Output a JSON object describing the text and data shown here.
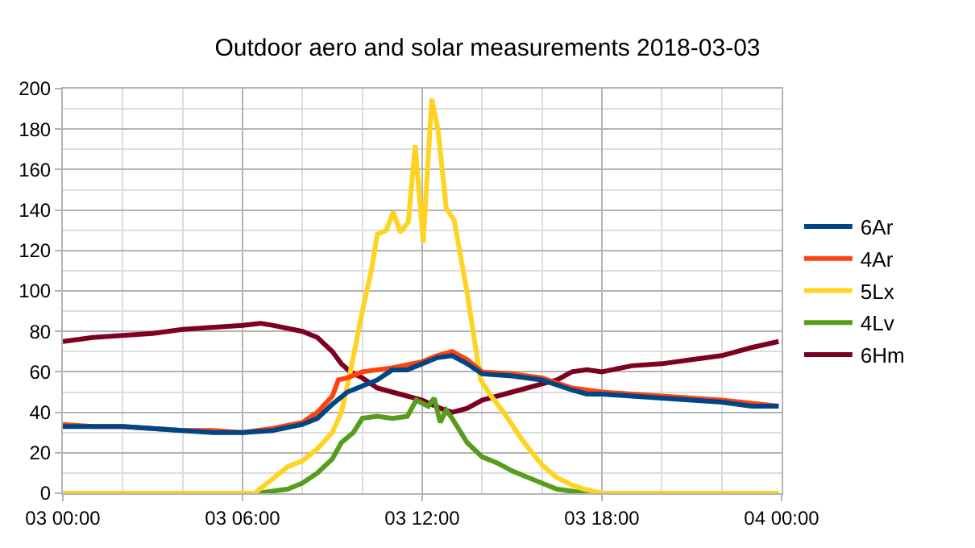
{
  "chart_data": {
    "type": "line",
    "title": "Outdoor aero and solar measurements 2018-03-03",
    "xlim": [
      "2018-03-03T00:00",
      "2018-03-04T00:00"
    ],
    "xticks": [
      {
        "value": "2018-03-03T00:00",
        "label": "03 00:00"
      },
      {
        "value": "2018-03-03T06:00",
        "label": "03 06:00"
      },
      {
        "value": "2018-03-03T12:00",
        "label": "03 12:00"
      },
      {
        "value": "2018-03-03T18:00",
        "label": "03 18:00"
      },
      {
        "value": "2018-03-04T00:00",
        "label": "04 00:00"
      }
    ],
    "ylim": [
      0,
      200
    ],
    "yticks": [
      0,
      20,
      40,
      60,
      80,
      100,
      120,
      140,
      160,
      180,
      200
    ],
    "grid": true,
    "legend": "right",
    "marker": "none",
    "line_style": "solid",
    "series": [
      {
        "name": "6Ar",
        "color": "#004586",
        "x": [
          "2018-03-03T00:00",
          "2018-03-03T01:00",
          "2018-03-03T02:00",
          "2018-03-03T03:00",
          "2018-03-03T04:00",
          "2018-03-03T05:00",
          "2018-03-03T06:00",
          "2018-03-03T07:00",
          "2018-03-03T08:00",
          "2018-03-03T08:30",
          "2018-03-03T09:00",
          "2018-03-03T09:30",
          "2018-03-03T10:00",
          "2018-03-03T10:30",
          "2018-03-03T11:00",
          "2018-03-03T11:30",
          "2018-03-03T12:00",
          "2018-03-03T12:30",
          "2018-03-03T13:00",
          "2018-03-03T13:30",
          "2018-03-03T14:00",
          "2018-03-03T15:00",
          "2018-03-03T16:00",
          "2018-03-03T17:00",
          "2018-03-03T17:30",
          "2018-03-03T18:00",
          "2018-03-03T19:00",
          "2018-03-03T20:00",
          "2018-03-03T21:00",
          "2018-03-03T22:00",
          "2018-03-03T23:00",
          "2018-03-03T23:54"
        ],
        "values": [
          33,
          33,
          33,
          32,
          31,
          30,
          30,
          31,
          34,
          37,
          44,
          50,
          53,
          56,
          61,
          61,
          64,
          67,
          68,
          64,
          59,
          58,
          56,
          51,
          49,
          49,
          48,
          47,
          46,
          45,
          43,
          43
        ]
      },
      {
        "name": "4Ar",
        "color": "#ff420e",
        "x": [
          "2018-03-03T00:00",
          "2018-03-03T01:00",
          "2018-03-03T02:00",
          "2018-03-03T03:00",
          "2018-03-03T04:00",
          "2018-03-03T05:00",
          "2018-03-03T06:00",
          "2018-03-03T07:00",
          "2018-03-03T08:00",
          "2018-03-03T08:30",
          "2018-03-03T09:00",
          "2018-03-03T09:12",
          "2018-03-03T09:30",
          "2018-03-03T10:00",
          "2018-03-03T10:30",
          "2018-03-03T11:00",
          "2018-03-03T12:00",
          "2018-03-03T12:30",
          "2018-03-03T13:00",
          "2018-03-03T13:30",
          "2018-03-03T14:00",
          "2018-03-03T15:00",
          "2018-03-03T16:00",
          "2018-03-03T17:00",
          "2018-03-03T18:00",
          "2018-03-03T20:00",
          "2018-03-03T22:00",
          "2018-03-03T23:54"
        ],
        "values": [
          34,
          33,
          33,
          32,
          31,
          31,
          30,
          32,
          35,
          40,
          48,
          56,
          57,
          60,
          61,
          62,
          65,
          68,
          70,
          66,
          60,
          59,
          57,
          52,
          50,
          48,
          46,
          43
        ]
      },
      {
        "name": "5Lx",
        "color": "#ffd320",
        "x": [
          "2018-03-03T00:00",
          "2018-03-03T06:24",
          "2018-03-03T07:00",
          "2018-03-03T07:30",
          "2018-03-03T08:00",
          "2018-03-03T08:30",
          "2018-03-03T09:00",
          "2018-03-03T09:18",
          "2018-03-03T09:36",
          "2018-03-03T10:00",
          "2018-03-03T10:18",
          "2018-03-03T10:30",
          "2018-03-03T10:48",
          "2018-03-03T11:02",
          "2018-03-03T11:16",
          "2018-03-03T11:32",
          "2018-03-03T11:46",
          "2018-03-03T12:02",
          "2018-03-03T12:19",
          "2018-03-03T12:32",
          "2018-03-03T12:48",
          "2018-03-03T13:04",
          "2018-03-03T13:30",
          "2018-03-03T13:57",
          "2018-03-03T14:18",
          "2018-03-03T14:40",
          "2018-03-03T15:24",
          "2018-03-03T16:00",
          "2018-03-03T16:28",
          "2018-03-03T17:00",
          "2018-03-03T17:24",
          "2018-03-03T18:00",
          "2018-03-03T23:54"
        ],
        "values": [
          0,
          0,
          7,
          13,
          16,
          22,
          30,
          40,
          60,
          90,
          110,
          128,
          130,
          139,
          129,
          134,
          172,
          124,
          195,
          179,
          141,
          135,
          99,
          56,
          48,
          41,
          25,
          14,
          8,
          4,
          2,
          0,
          0
        ]
      },
      {
        "name": "4Lv",
        "color": "#579d1c",
        "x": [
          "2018-03-03T00:00",
          "2018-03-03T06:30",
          "2018-03-03T07:30",
          "2018-03-03T08:00",
          "2018-03-03T08:30",
          "2018-03-03T09:00",
          "2018-03-03T09:18",
          "2018-03-03T09:42",
          "2018-03-03T10:00",
          "2018-03-03T10:30",
          "2018-03-03T11:00",
          "2018-03-03T11:30",
          "2018-03-03T11:48",
          "2018-03-03T12:12",
          "2018-03-03T12:24",
          "2018-03-03T12:36",
          "2018-03-03T12:48",
          "2018-03-03T13:00",
          "2018-03-03T13:30",
          "2018-03-03T14:00",
          "2018-03-03T14:30",
          "2018-03-03T15:00",
          "2018-03-03T15:30",
          "2018-03-03T16:00",
          "2018-03-03T16:30",
          "2018-03-03T17:00",
          "2018-03-03T17:30",
          "2018-03-03T23:54"
        ],
        "values": [
          0,
          0,
          2,
          5,
          10,
          17,
          25,
          30,
          37,
          38,
          37,
          38,
          46,
          43,
          47,
          35,
          41,
          37,
          25,
          18,
          15,
          11,
          8,
          5,
          2,
          1,
          0,
          0
        ]
      },
      {
        "name": "6Hm",
        "color": "#7e0021",
        "x": [
          "2018-03-03T00:00",
          "2018-03-03T01:00",
          "2018-03-03T02:00",
          "2018-03-03T03:00",
          "2018-03-03T04:00",
          "2018-03-03T05:00",
          "2018-03-03T06:00",
          "2018-03-03T06:36",
          "2018-03-03T07:00",
          "2018-03-03T08:00",
          "2018-03-03T08:30",
          "2018-03-03T09:00",
          "2018-03-03T09:18",
          "2018-03-03T09:36",
          "2018-03-03T10:00",
          "2018-03-03T10:30",
          "2018-03-03T11:00",
          "2018-03-03T11:30",
          "2018-03-03T12:00",
          "2018-03-03T12:36",
          "2018-03-03T13:00",
          "2018-03-03T13:30",
          "2018-03-03T14:00",
          "2018-03-03T15:00",
          "2018-03-03T15:30",
          "2018-03-03T16:00",
          "2018-03-03T16:30",
          "2018-03-03T17:00",
          "2018-03-03T17:30",
          "2018-03-03T18:00",
          "2018-03-03T19:00",
          "2018-03-03T20:00",
          "2018-03-03T21:00",
          "2018-03-03T22:00",
          "2018-03-03T23:00",
          "2018-03-03T23:54"
        ],
        "values": [
          75,
          77,
          78,
          79,
          81,
          82,
          83,
          84,
          83,
          80,
          77,
          70,
          64,
          60,
          57,
          52,
          50,
          48,
          46,
          42,
          40,
          42,
          46,
          50,
          52,
          54,
          56,
          60,
          61,
          60,
          63,
          64,
          66,
          68,
          72,
          75
        ]
      }
    ]
  }
}
